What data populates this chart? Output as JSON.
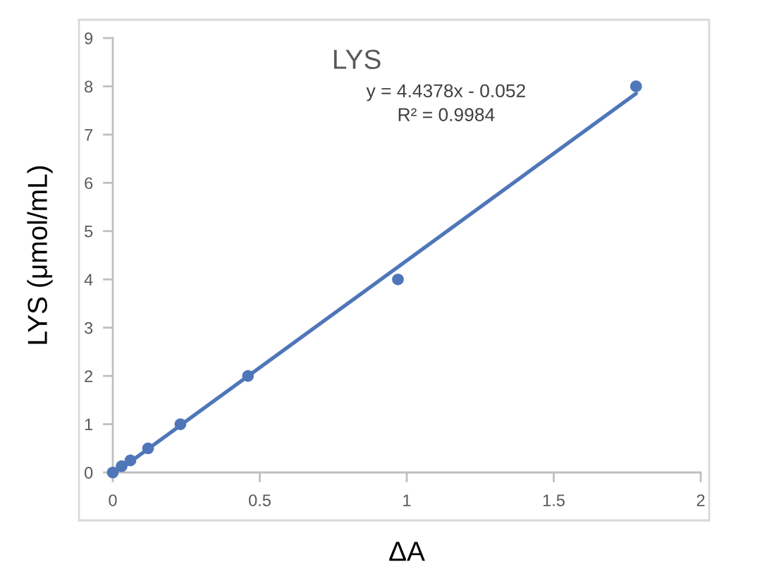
{
  "chart_data": {
    "type": "scatter",
    "title": "LYS",
    "xlabel": "ΔA",
    "ylabel": "LYS (μmol/mL)",
    "annotations": [
      "y = 4.4378x - 0.052",
      "R² = 0.9984"
    ],
    "series": [
      {
        "color": "#4f76b9",
        "marker": "circle",
        "x": [
          0,
          0.03,
          0.06,
          0.12,
          0.23,
          0.46,
          0.97,
          1.78
        ],
        "values": [
          0,
          0.13,
          0.25,
          0.5,
          1,
          2,
          4,
          8
        ]
      },
      {
        "type": "line",
        "color": "#4f76b9",
        "marker": "none",
        "line_style": "solid",
        "x": [
          0.01,
          1.78
        ],
        "values": [
          0,
          7.85
        ]
      }
    ],
    "xlim": [
      0,
      2
    ],
    "xticks": [
      0,
      0.5,
      1,
      1.5,
      2
    ],
    "ylim": [
      0,
      9
    ],
    "yticks": [
      0,
      1,
      2,
      3,
      4,
      5,
      6,
      7,
      8,
      9
    ],
    "grid": false
  }
}
